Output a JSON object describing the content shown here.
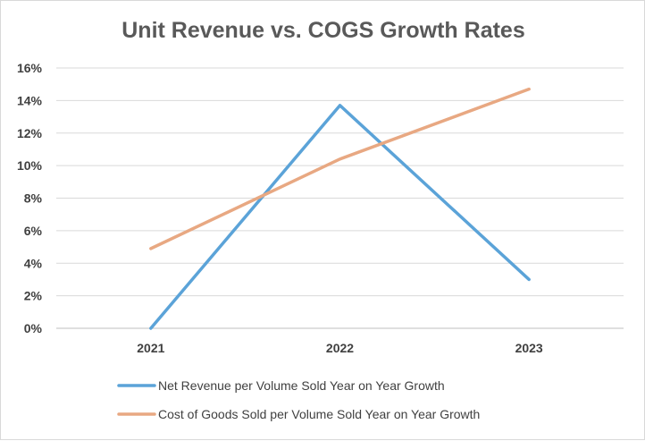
{
  "chart_data": {
    "type": "line",
    "title": "Unit Revenue vs. COGS Growth Rates",
    "categories": [
      "2021",
      "2022",
      "2023"
    ],
    "y_tick_labels": [
      "0%",
      "2%",
      "4%",
      "6%",
      "8%",
      "10%",
      "12%",
      "14%",
      "16%"
    ],
    "ylim": [
      0,
      16
    ],
    "y_unit": "%",
    "grid": true,
    "legend_position": "bottom",
    "series": [
      {
        "name": "Net Revenue per Volume Sold Year on Year Growth",
        "color": "#5ba3d8",
        "values": [
          0.0,
          13.7,
          3.0
        ]
      },
      {
        "name": "Cost of Goods Sold per Volume Sold Year on Year Growth",
        "color": "#e8a882",
        "values": [
          4.9,
          10.4,
          14.7
        ]
      }
    ]
  }
}
